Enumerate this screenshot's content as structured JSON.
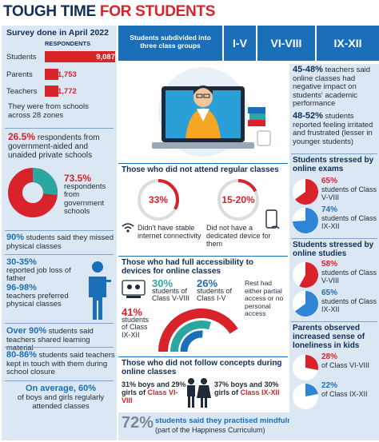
{
  "title": {
    "part1": "TOUGH TIME",
    "part2": "FOR STUDENTS"
  },
  "survey": {
    "heading": "Survey done in April 2022",
    "respondents_label": "RESPONDENTS",
    "rows": [
      {
        "label": "Students",
        "value": "9,087",
        "num": 9087
      },
      {
        "label": "Parents",
        "value": "1,753",
        "num": 1753
      },
      {
        "label": "Teachers",
        "value": "1,772",
        "num": 1772
      }
    ],
    "schools_note": "They were from schools across 28 zones"
  },
  "respondents_split": {
    "private_pct": "26.5%",
    "private_text": "respondents from government-aided and unaided private schools",
    "govt_pct": "73.5%",
    "govt_text": "respondents from government schools",
    "private_value": 26.5,
    "govt_value": 73.5
  },
  "left_stats": [
    {
      "pct": "90%",
      "text": "students said they missed physical classes"
    },
    {
      "pct": "30-35%",
      "text": "reported job loss of father"
    },
    {
      "pct": "96-98%",
      "text": "teachers preferred physical classes"
    },
    {
      "pct": "Over 90%",
      "text": "students said teachers shared learning material"
    },
    {
      "pct": "80-86%",
      "text": "students said teachers kept in touch with them during school closure"
    },
    {
      "pct": "On average, 60%",
      "text": "of boys and girls regularly attended classes"
    }
  ],
  "groups": {
    "label": "Students subdivided into three class groups",
    "items": [
      "I-V",
      "VI-VIII",
      "IX-XII"
    ]
  },
  "not_attend": {
    "heading": "Those who did not attend regular classes",
    "items": [
      {
        "pct": "33%",
        "text": "Didn't have stable internet connectivity",
        "value": 33,
        "icon": "wifi-icon"
      },
      {
        "pct": "15-20%",
        "text": "Did not have a dedicated device for them",
        "value": 17.5,
        "icon": "phone-icon"
      }
    ]
  },
  "full_access": {
    "heading": "Those who had full accessibility to devices for online classes",
    "rest_note": "Rest had either partial access or no personal access",
    "items": [
      {
        "pct": "41%",
        "text": "students of Class IX-XII",
        "value": 41
      },
      {
        "pct": "30%",
        "text": "students of Class V-VIII",
        "value": 30
      },
      {
        "pct": "26%",
        "text": "students of Class I-V",
        "value": 26
      }
    ]
  },
  "not_follow": {
    "heading": "Those who did not follow concepts during online classes",
    "items": [
      {
        "line1": "31% boys and 29% girls of",
        "cls": "Class VI-VIII"
      },
      {
        "line1": "37% boys and 30% girls of",
        "cls": "Class IX-XII"
      }
    ]
  },
  "mindfulness": {
    "pct": "72%",
    "text": "students said they practised mindfulness",
    "note": "(part of the Happiness Curriculum)"
  },
  "teachers": [
    {
      "pct": "45-48%",
      "text": "teachers said online classes had negative impact on students' academic performance"
    },
    {
      "pct": "48-52%",
      "text": "students reported feeling irritated and frustrated (lesser in younger students)"
    }
  ],
  "stressed_exams": {
    "heading": "Students stressed by online exams",
    "items": [
      {
        "pct": "65%",
        "text": "students of Class V-VIII",
        "value": 65,
        "color": "#d8232a"
      },
      {
        "pct": "74%",
        "text": "students of Class IX-XII",
        "value": 74,
        "color": "#2f86d6"
      }
    ]
  },
  "stressed_studies": {
    "heading": "Students stressed by online studies",
    "items": [
      {
        "pct": "58%",
        "text": "students of Class V-VIII",
        "value": 58,
        "color": "#d8232a"
      },
      {
        "pct": "65%",
        "text": "students of Class IX-XII",
        "value": 65,
        "color": "#2f86d6"
      }
    ]
  },
  "loneliness": {
    "heading": "Parents observed increased sense of loneliness in kids",
    "items": [
      {
        "pct": "28%",
        "text": "of Class VI-VIII",
        "value": 28,
        "color": "#d8232a"
      },
      {
        "pct": "22%",
        "text": "of Class IX-XII",
        "value": 22,
        "color": "#2f86d6"
      }
    ]
  },
  "colors": {
    "red": "#d8232a",
    "blue": "#1b6fb8",
    "navy": "#0f2f57",
    "teal": "#2aa7a0",
    "panel": "#dbe8f3"
  }
}
